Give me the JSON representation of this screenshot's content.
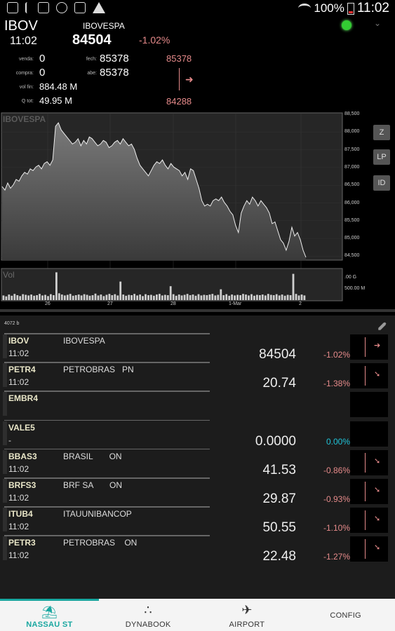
{
  "statusbar": {
    "battery": "100%",
    "time": "11:02",
    "icons": [
      "image-icon",
      "usb-icon",
      "gplus-icon",
      "sync-icon",
      "mail-icon",
      "warning-icon"
    ]
  },
  "quote": {
    "code": "IBOV",
    "time": "11:02",
    "name": "IBOVESPA",
    "price": "84504",
    "change": "-1.02%",
    "labels": {
      "venda": "venda:",
      "compra": "compra:",
      "volfin": "vol fin:",
      "qtot": "Q tot:",
      "fech": "fech:",
      "abe": "abe:"
    },
    "venda": "0",
    "compra": "0",
    "volfin": "884.48 M",
    "qtot": "49.95 M",
    "fech": "85378",
    "abe": "85378",
    "high": "85378",
    "low": "84288",
    "status_color": "#33cc33"
  },
  "chart": {
    "title": "IBOVESPA",
    "vol_label": "Vol",
    "y_ticks": [
      "88,500",
      "88,000",
      "87,500",
      "87,000",
      "86,500",
      "86,000",
      "85,500",
      "85,000",
      "84,500"
    ],
    "vol_ticks": [
      ".00 G",
      "500.00 M"
    ],
    "x_ticks": [
      "26",
      "27",
      "28",
      "1-Mar",
      "2"
    ],
    "buttons": [
      "Z",
      "LP",
      "ID"
    ],
    "series": [
      86500,
      86400,
      86600,
      86450,
      86550,
      86700,
      86650,
      86800,
      86900,
      86850,
      87000,
      86950,
      87050,
      87100,
      87000,
      87150,
      87200,
      87100,
      87250,
      88200,
      88300,
      88100,
      88000,
      87900,
      87800,
      87700,
      87750,
      87850,
      87650,
      87800,
      87700,
      87900,
      87850,
      87750,
      87650,
      87700,
      87800,
      87750,
      87600,
      87650,
      87750,
      87800,
      87700,
      87850,
      87750,
      87650,
      87700,
      87550,
      87300,
      87100,
      87000,
      86900,
      86800,
      86950,
      87100,
      87200,
      87150,
      87250,
      87100,
      87000,
      87150,
      87050,
      87000,
      86950,
      86800,
      86900,
      86700,
      87000,
      86950,
      86700,
      86450,
      86100,
      85950,
      86000,
      85950,
      86100,
      86150,
      86100,
      86200,
      86050,
      85950,
      85800,
      85700,
      85400,
      85200,
      85750,
      85950,
      86100,
      86000,
      86200,
      86100,
      85950,
      86100,
      86000,
      85900,
      85750,
      85450,
      85500,
      85250,
      85000,
      84900,
      84700,
      84950,
      85350,
      85100,
      85200,
      85000,
      84700,
      84500
    ],
    "volumes": [
      0.15,
      0.12,
      0.18,
      0.14,
      0.2,
      0.16,
      0.13,
      0.19,
      0.17,
      0.15,
      0.18,
      0.14,
      0.16,
      0.2,
      0.15,
      0.17,
      0.13,
      0.19,
      0.16,
      0.9,
      0.22,
      0.18,
      0.15,
      0.17,
      0.2,
      0.14,
      0.16,
      0.18,
      0.15,
      0.19,
      0.17,
      0.14,
      0.16,
      0.21,
      0.15,
      0.18,
      0.13,
      0.17,
      0.2,
      0.16,
      0.19,
      0.15,
      0.6,
      0.18,
      0.14,
      0.17,
      0.16,
      0.2,
      0.15,
      0.18,
      0.13,
      0.19,
      0.16,
      0.17,
      0.14,
      0.18,
      0.2,
      0.15,
      0.17,
      0.16,
      0.45,
      0.19,
      0.14,
      0.18,
      0.15,
      0.17,
      0.2,
      0.16,
      0.18,
      0.14,
      0.19,
      0.15,
      0.17,
      0.16,
      0.18,
      0.2,
      0.15,
      0.17,
      0.35,
      0.16,
      0.19,
      0.14,
      0.18,
      0.15,
      0.17,
      0.16,
      0.2,
      0.18,
      0.15,
      0.19,
      0.14,
      0.17,
      0.16,
      0.18,
      0.15,
      0.2,
      0.17,
      0.16,
      0.19,
      0.15,
      0.18,
      0.14,
      0.17,
      0.16,
      0.85,
      0.2,
      0.15,
      0.18,
      0.15
    ]
  },
  "list": {
    "header": "4072 b",
    "rows": [
      {
        "code": "IBOV",
        "time": "11:02",
        "name": "IBOVESPA",
        "price": "84504",
        "change": "-1.02%",
        "change_color": "#e58a8a",
        "mini": true
      },
      {
        "code": "PETR4",
        "time": "11:02",
        "name": "PETROBRAS   PN",
        "price": "20.74",
        "change": "-1.38%",
        "change_color": "#e58a8a",
        "mini": true
      },
      {
        "code": "EMBR4",
        "time": "",
        "name": "",
        "price": "",
        "change": "",
        "change_color": "#e58a8a",
        "mini": false
      },
      {
        "code": "VALE5",
        "time": "-",
        "name": "",
        "price": "0.0000",
        "change": "0.00%",
        "change_color": "#1fc3d8",
        "mini": false
      },
      {
        "code": "BBAS3",
        "time": "11:02",
        "name": "BRASIL       ON",
        "price": "41.53",
        "change": "-0.86%",
        "change_color": "#e58a8a",
        "mini": true
      },
      {
        "code": "BRFS3",
        "time": "11:02",
        "name": "BRF SA       ON",
        "price": "29.87",
        "change": "-0.93%",
        "change_color": "#e58a8a",
        "mini": true
      },
      {
        "code": "ITUB4",
        "time": "11:02",
        "name": "ITAUUNIBANCOP",
        "price": "50.55",
        "change": "-1.10%",
        "change_color": "#e58a8a",
        "mini": true
      },
      {
        "code": "PETR3",
        "time": "11:02",
        "name": "PETROBRAS    ON",
        "price": "22.48",
        "change": "-1.27%",
        "change_color": "#e58a8a",
        "mini": true
      }
    ]
  },
  "nav": {
    "items": [
      {
        "label": "NASSAU ST",
        "icon": "beach-icon",
        "active": true
      },
      {
        "label": "DYNABOOK",
        "icon": "dots-icon",
        "active": false
      },
      {
        "label": "AIRPORT",
        "icon": "airplane-icon",
        "active": false
      },
      {
        "label": "CONFIG",
        "icon": "",
        "active": false
      }
    ],
    "accent": "#19a7a0"
  }
}
